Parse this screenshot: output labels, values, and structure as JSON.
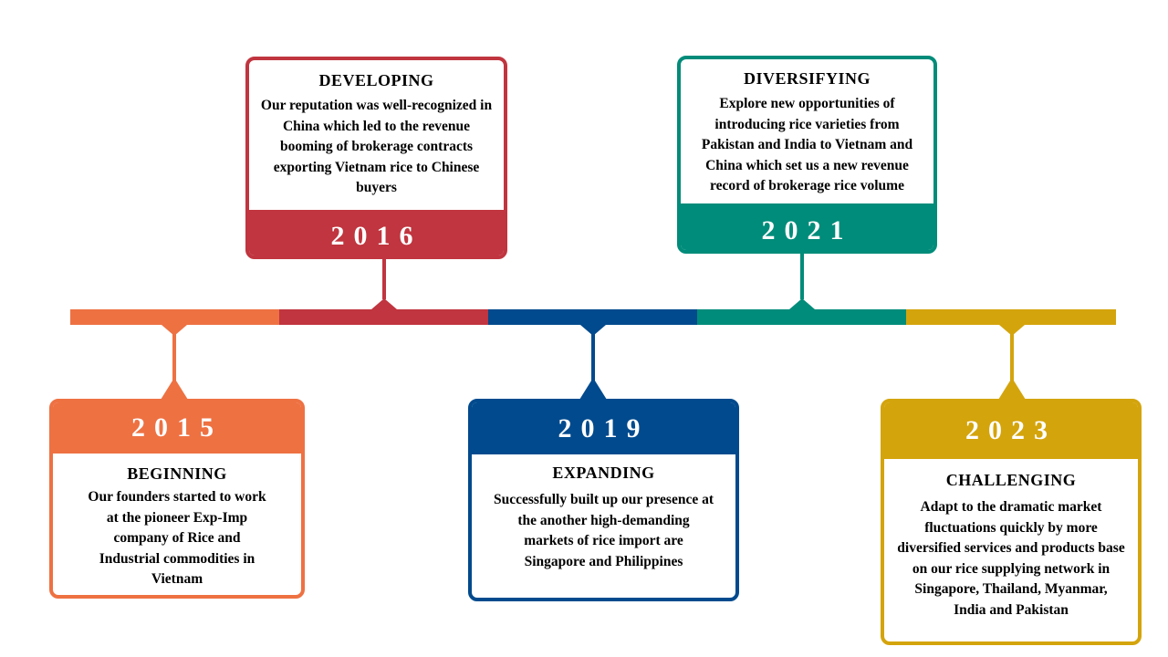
{
  "colors": {
    "orange": "#ee7142",
    "red": "#c0353f",
    "blue": "#004a8d",
    "teal": "#008c7a",
    "gold": "#d4a40c"
  },
  "milestones": [
    {
      "year": "2015",
      "title": "BEGINNING",
      "text": "Our founders started to work at the pioneer Exp-Imp company of Rice and Industrial commodities in Vietnam"
    },
    {
      "year": "2016",
      "title": "DEVELOPING",
      "text": "Our reputation was well-recognized in China which led to the revenue booming of brokerage contracts exporting Vietnam rice to Chinese buyers"
    },
    {
      "year": "2019",
      "title": "EXPANDING",
      "text": "Successfully built up our presence at the another high-demanding markets of rice import are Singapore and Philippines"
    },
    {
      "year": "2021",
      "title": "DIVERSIFYING",
      "text": "Explore new opportunities of introducing rice varieties  from Pakistan and India to Vietnam and China which set us a new revenue record of brokerage rice volume"
    },
    {
      "year": "2023",
      "title": "CHALLENGING",
      "text": "Adapt to the dramatic market fluctuations quickly by more diversified services and products base on our rice supplying network in Singapore, Thailand, Myanmar, India and Pakistan"
    }
  ]
}
